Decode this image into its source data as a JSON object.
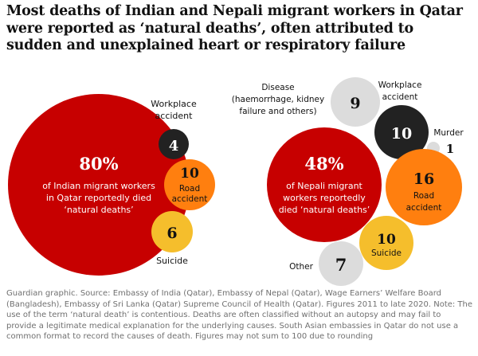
{
  "title": "Most deaths of Indian and Nepali migrant workers in Qatar were reported as ‘natural deaths’, often attributed to sudden and unexplained heart or respiratory failure",
  "source": "Guardian graphic. Source: Embassy of India (Qatar), Embassy of Nepal (Qatar), Wage Earners’ Welfare Board (Bangladesh), Embassy of Sri Lanka (Qatar) Supreme Council of Health (Qatar). Figures 2011 to late 2020. Note: The use of the term ‘natural death’ is contentious. Deaths are often classified without an autopsy and may fail to provide a legitimate medical explanation for the underlying causes. South Asian embassies in Qatar do not use a common format to record the causes of death. Figures may not sum to 100 due to rounding",
  "colors": {
    "natural": "#c70000",
    "workplace": "#222222",
    "road": "#ff7f0f",
    "suicide": "#f5be2c",
    "disease": "#dcdcdc",
    "other": "#dcdcdc",
    "murder": "#dcdcdc"
  },
  "chart_data": [
    {
      "type": "bubble",
      "unit": "%",
      "bubbles": [
        {
          "label": "Natural deaths",
          "value": 80,
          "text": [
            "80%",
            "of Indian migrant workers",
            "in Qatar reportedly died",
            "‘natural deaths’"
          ]
        },
        {
          "label": "Workplace accident",
          "value": 4,
          "text": [
            "Workplace",
            "accident"
          ]
        },
        {
          "label": "Road accident",
          "value": 10,
          "text": [
            "Road",
            "accident"
          ]
        },
        {
          "label": "Suicide",
          "value": 6,
          "text": [
            "Suicide"
          ]
        }
      ]
    },
    {
      "type": "bubble",
      "unit": "%",
      "bubbles": [
        {
          "label": "Natural deaths",
          "value": 48,
          "text": [
            "48%",
            "of Nepali migrant",
            "workers reportedly",
            "died ‘natural deaths’"
          ]
        },
        {
          "label": "Disease",
          "value": 9,
          "text": [
            "Disease",
            "(haemorrhage, kidney",
            "failure and others)"
          ]
        },
        {
          "label": "Workplace accident",
          "value": 10,
          "text": [
            "Workplace",
            "accident"
          ]
        },
        {
          "label": "Murder",
          "value": 1,
          "text": [
            "Murder"
          ]
        },
        {
          "label": "Road accident",
          "value": 16,
          "text": [
            "Road",
            "accident"
          ]
        },
        {
          "label": "Suicide",
          "value": 10,
          "text": [
            "Suicide"
          ]
        },
        {
          "label": "Other",
          "value": 7,
          "text": [
            "Other"
          ]
        }
      ]
    }
  ]
}
